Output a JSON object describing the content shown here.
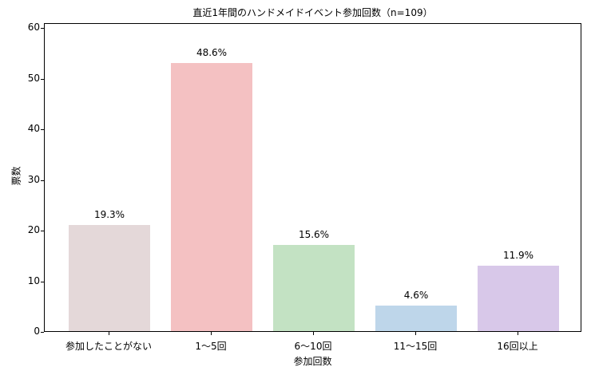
{
  "chart_data": {
    "type": "bar",
    "title": "直近1年間のハンドメイドイベント参加回数（n=109）",
    "xlabel": "参加回数",
    "ylabel": "票数",
    "categories": [
      "参加したことがない",
      "1〜5回",
      "6〜10回",
      "11〜15回",
      "16回以上"
    ],
    "values": [
      21,
      53,
      17,
      5,
      13
    ],
    "labels": [
      "19.3%",
      "48.6%",
      "15.6%",
      "4.6%",
      "11.9%"
    ],
    "colors": [
      "#e4d8d9",
      "#f4c1c2",
      "#c3e2c3",
      "#bed6ea",
      "#d8c8e9"
    ],
    "yticks": [
      0,
      10,
      20,
      30,
      40,
      50,
      60
    ],
    "ylim": [
      0,
      61
    ],
    "grid": false,
    "legend": null
  }
}
